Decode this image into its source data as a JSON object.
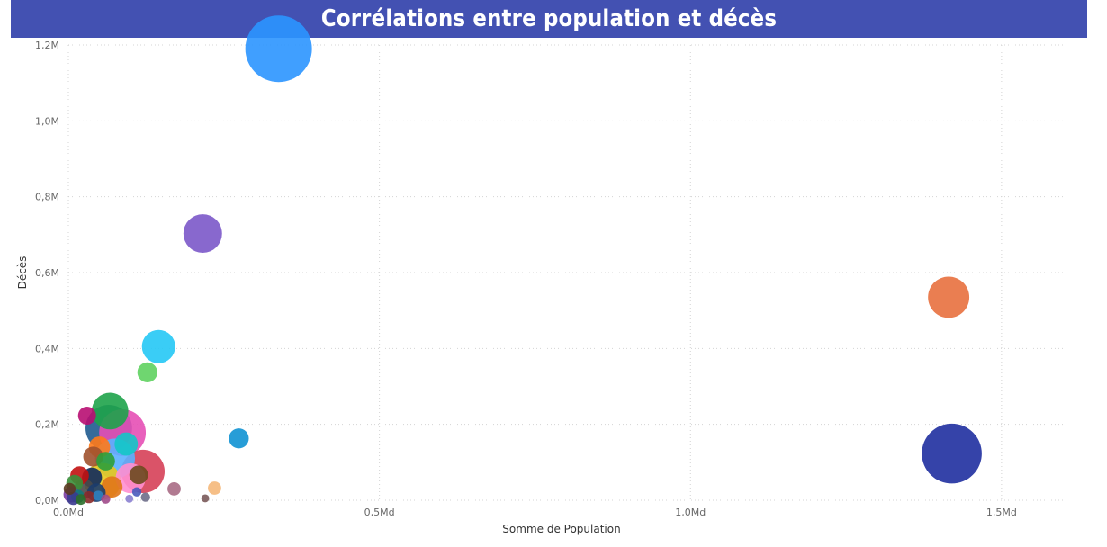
{
  "title": "Corrélations entre population et décès",
  "chart_data": {
    "type": "scatter",
    "xlabel": "Somme de Population",
    "ylabel": "Décès",
    "xlim": [
      0,
      1600000000
    ],
    "ylim": [
      0,
      1200000
    ],
    "grid": true,
    "x_ticks": [
      {
        "value": 0,
        "label": "0,0Md"
      },
      {
        "value": 500000000,
        "label": "0,5Md"
      },
      {
        "value": 1000000000,
        "label": "1,0Md"
      },
      {
        "value": 1500000000,
        "label": "1,5Md"
      }
    ],
    "y_ticks": [
      {
        "value": 0,
        "label": "0,0M"
      },
      {
        "value": 200000,
        "label": "0,2M"
      },
      {
        "value": 400000,
        "label": "0,4M"
      },
      {
        "value": 600000,
        "label": "0,6M"
      },
      {
        "value": 800000,
        "label": "0,8M"
      },
      {
        "value": 1000000,
        "label": "1,0M"
      },
      {
        "value": 1200000,
        "label": "1,2M"
      }
    ],
    "points": [
      {
        "x": 338000000,
        "y": 1190000,
        "size": 1.0,
        "color": "#2b95ff"
      },
      {
        "x": 216000000,
        "y": 703000,
        "size": 0.58,
        "color": "#7b58c9"
      },
      {
        "x": 1415000000,
        "y": 535000,
        "size": 0.62,
        "color": "#e8703e"
      },
      {
        "x": 1420000000,
        "y": 123000,
        "size": 0.9,
        "color": "#1f2fa0"
      },
      {
        "x": 145000000,
        "y": 405000,
        "size": 0.5,
        "color": "#25c8f5"
      },
      {
        "x": 127000000,
        "y": 337000,
        "size": 0.3,
        "color": "#5fd160"
      },
      {
        "x": 274000000,
        "y": 163000,
        "size": 0.3,
        "color": "#0f92d3"
      },
      {
        "x": 65000000,
        "y": 190000,
        "size": 0.7,
        "color": "#1f5b8f"
      },
      {
        "x": 87000000,
        "y": 178000,
        "size": 0.7,
        "color": "#e54fb5"
      },
      {
        "x": 67000000,
        "y": 235000,
        "size": 0.55,
        "color": "#1ea34a"
      },
      {
        "x": 30000000,
        "y": 223000,
        "size": 0.27,
        "color": "#b80e72"
      },
      {
        "x": 93000000,
        "y": 148000,
        "size": 0.35,
        "color": "#13c7c7"
      },
      {
        "x": 120000000,
        "y": 76000,
        "size": 0.65,
        "color": "#d64058"
      },
      {
        "x": 75000000,
        "y": 110000,
        "size": 0.6,
        "color": "#5ab0ff"
      },
      {
        "x": 50000000,
        "y": 140000,
        "size": 0.32,
        "color": "#ff7a1a"
      },
      {
        "x": 40000000,
        "y": 115000,
        "size": 0.3,
        "color": "#a0522d"
      },
      {
        "x": 60000000,
        "y": 103000,
        "size": 0.28,
        "color": "#2e9e3a"
      },
      {
        "x": 113000000,
        "y": 67000,
        "size": 0.28,
        "color": "#6b4a1e"
      },
      {
        "x": 100000000,
        "y": 58000,
        "size": 0.45,
        "color": "#ff8fd0"
      },
      {
        "x": 55000000,
        "y": 50000,
        "size": 0.55,
        "color": "#e8c81c"
      },
      {
        "x": 38000000,
        "y": 60000,
        "size": 0.3,
        "color": "#102a5c"
      },
      {
        "x": 18000000,
        "y": 65000,
        "size": 0.28,
        "color": "#c21111"
      },
      {
        "x": 70000000,
        "y": 35000,
        "size": 0.32,
        "color": "#e0761a"
      },
      {
        "x": 25000000,
        "y": 30000,
        "size": 0.3,
        "color": "#4a4a4a"
      },
      {
        "x": 10000000,
        "y": 45000,
        "size": 0.25,
        "color": "#3a8f3a"
      },
      {
        "x": 45000000,
        "y": 20000,
        "size": 0.28,
        "color": "#1c3d6e"
      },
      {
        "x": 5000000,
        "y": 15000,
        "size": 0.24,
        "color": "#7a3ca0"
      },
      {
        "x": 15000000,
        "y": 10000,
        "size": 0.2,
        "color": "#0e7a7a"
      },
      {
        "x": 33000000,
        "y": 8000,
        "size": 0.18,
        "color": "#8a2a2a"
      },
      {
        "x": 8000000,
        "y": 5000,
        "size": 0.2,
        "color": "#3b3b8f"
      },
      {
        "x": 170000000,
        "y": 30000,
        "size": 0.2,
        "color": "#a86b85"
      },
      {
        "x": 235000000,
        "y": 32000,
        "size": 0.2,
        "color": "#f5b87a"
      },
      {
        "x": 220000000,
        "y": 5000,
        "size": 0.12,
        "color": "#7a5a5a"
      },
      {
        "x": 124000000,
        "y": 8000,
        "size": 0.14,
        "color": "#6e6e8a"
      },
      {
        "x": 110000000,
        "y": 22000,
        "size": 0.14,
        "color": "#4a5bbd"
      },
      {
        "x": 98000000,
        "y": 4000,
        "size": 0.12,
        "color": "#8a7fd0"
      },
      {
        "x": 20000000,
        "y": 2000,
        "size": 0.16,
        "color": "#2b6f2b"
      },
      {
        "x": 2000000,
        "y": 30000,
        "size": 0.18,
        "color": "#5b3a20"
      },
      {
        "x": 60000000,
        "y": 3000,
        "size": 0.14,
        "color": "#a04a8a"
      },
      {
        "x": 48000000,
        "y": 12000,
        "size": 0.15,
        "color": "#2f7fbf"
      }
    ]
  }
}
